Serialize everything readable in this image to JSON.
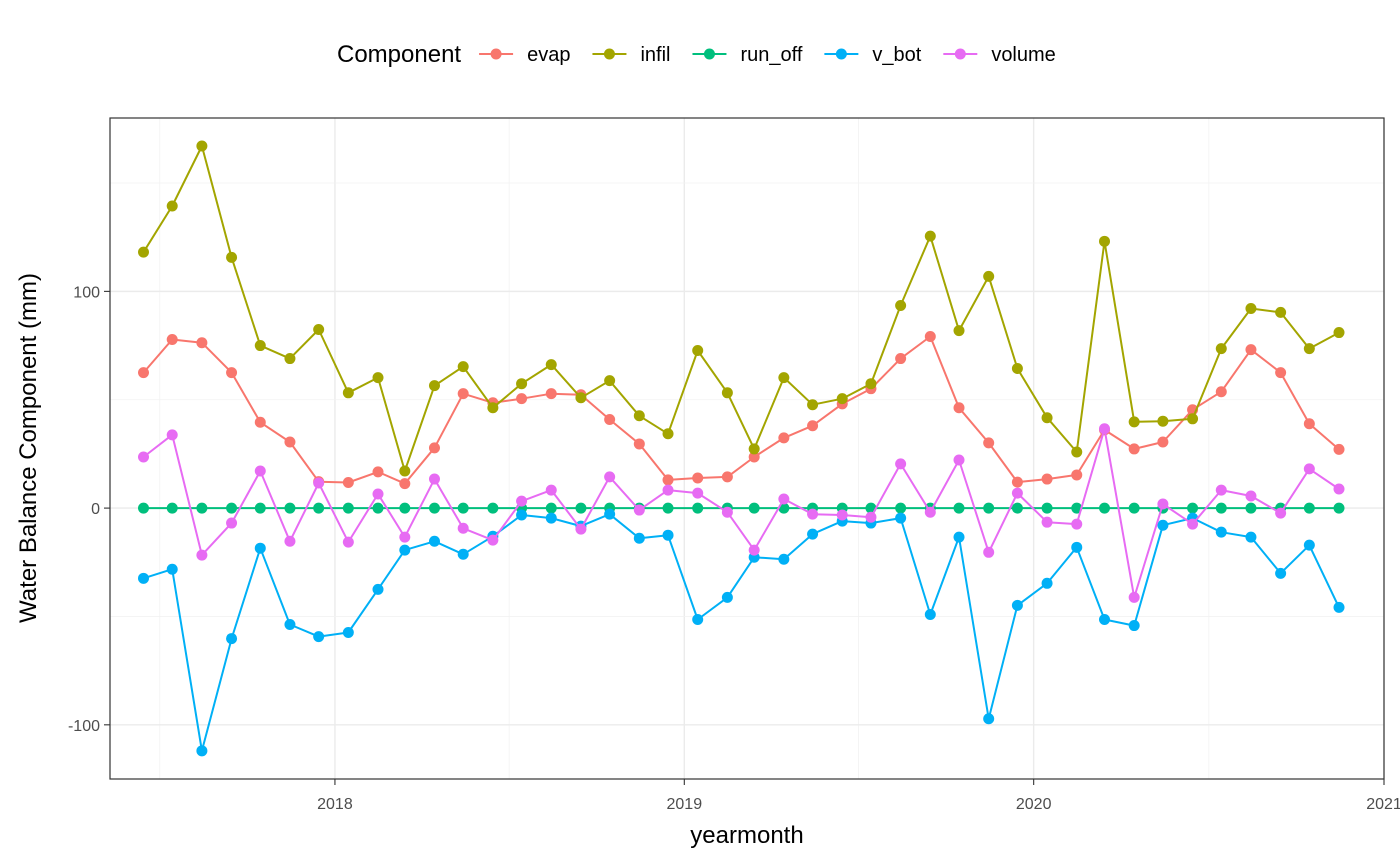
{
  "chart_data": {
    "type": "line",
    "title": "",
    "xlabel": "yearmonth",
    "ylabel": "Water Balance Component (mm)",
    "legend_title": "Component",
    "legend_position": "top",
    "grid": true,
    "xlim": [
      "2017-05-11",
      "2021-01-01"
    ],
    "ylim": [
      -125,
      180
    ],
    "x_ticks": [
      {
        "value": "2018-01-01",
        "label": "2018"
      },
      {
        "value": "2019-01-01",
        "label": "2019"
      },
      {
        "value": "2020-01-01",
        "label": "2020"
      },
      {
        "value": "2021-01-01",
        "label": "2021"
      }
    ],
    "y_ticks": [
      -100,
      0,
      100
    ],
    "x": [
      "2017-06",
      "2017-07",
      "2017-08",
      "2017-09",
      "2017-10",
      "2017-11",
      "2017-12",
      "2018-01",
      "2018-02",
      "2018-03",
      "2018-04",
      "2018-05",
      "2018-06",
      "2018-07",
      "2018-08",
      "2018-09",
      "2018-10",
      "2018-11",
      "2018-12",
      "2019-01",
      "2019-02",
      "2019-03",
      "2019-04",
      "2019-05",
      "2019-06",
      "2019-07",
      "2019-08",
      "2019-09",
      "2019-10",
      "2019-11",
      "2019-12",
      "2020-01",
      "2020-02",
      "2020-03",
      "2020-04",
      "2020-05",
      "2020-06",
      "2020-07",
      "2020-08",
      "2020-09",
      "2020-10",
      "2020-11"
    ],
    "series": [
      {
        "name": "evap",
        "color": "#F8766D",
        "values": [
          62.5,
          77.8,
          76.3,
          62.5,
          39.6,
          30.5,
          12.2,
          11.8,
          16.7,
          11.3,
          27.8,
          52.8,
          48.6,
          50.5,
          52.8,
          52.3,
          40.9,
          29.6,
          13.0,
          13.9,
          14.4,
          23.6,
          32.4,
          38.0,
          48.1,
          55.1,
          69.0,
          79.2,
          46.3,
          30.1,
          12.0,
          13.4,
          15.3,
          36.1,
          27.3,
          30.5,
          45.4,
          53.7,
          73.1,
          62.5,
          38.9,
          27.1
        ]
      },
      {
        "name": "infil",
        "color": "#A3A500",
        "values": [
          118.1,
          139.4,
          167.1,
          115.7,
          75.0,
          69.0,
          82.4,
          53.2,
          60.2,
          17.1,
          56.5,
          65.3,
          46.3,
          57.4,
          66.2,
          50.9,
          58.8,
          42.6,
          34.3,
          72.7,
          53.2,
          27.3,
          60.2,
          47.7,
          50.5,
          57.4,
          93.5,
          125.5,
          81.9,
          106.9,
          64.4,
          41.7,
          25.9,
          123.1,
          39.8,
          40.1,
          41.2,
          73.6,
          92.1,
          90.3,
          73.6,
          81.0
        ]
      },
      {
        "name": "run_off",
        "color": "#00BF7D",
        "values": [
          0,
          0,
          0,
          0,
          0,
          0,
          0,
          0,
          0,
          0,
          0,
          0,
          0,
          0,
          0,
          0,
          0,
          0,
          0,
          0,
          0,
          0,
          0,
          0,
          0,
          0,
          0,
          0,
          0,
          0,
          0,
          0,
          0,
          0,
          0,
          0,
          0,
          0,
          0,
          0,
          0,
          0
        ]
      },
      {
        "name": "v_bot",
        "color": "#00B0F6",
        "values": [
          -32.4,
          -28.2,
          -112.0,
          -60.2,
          -18.5,
          -53.7,
          -59.3,
          -57.4,
          -37.5,
          -19.4,
          -15.3,
          -21.3,
          -13.0,
          -3.2,
          -4.6,
          -8.3,
          -2.8,
          -13.9,
          -12.5,
          -51.4,
          -41.2,
          -22.7,
          -23.6,
          -12.0,
          -6.0,
          -6.9,
          -4.6,
          -49.1,
          -13.4,
          -97.2,
          -44.9,
          -34.7,
          -18.1,
          -51.4,
          -54.2,
          -7.9,
          -4.6,
          -11.1,
          -13.4,
          -30.1,
          -17.1,
          -45.8
        ]
      },
      {
        "name": "volume",
        "color": "#E76BF3",
        "values": [
          23.6,
          33.8,
          -21.7,
          -6.9,
          17.1,
          -15.3,
          11.6,
          -15.7,
          6.5,
          -13.4,
          13.4,
          -9.3,
          -14.8,
          3.2,
          8.3,
          -9.7,
          14.4,
          -0.9,
          8.3,
          6.9,
          -1.9,
          -19.4,
          4.2,
          -2.8,
          -3.2,
          -4.2,
          20.4,
          -1.9,
          22.2,
          -20.4,
          6.9,
          -6.5,
          -7.4,
          36.6,
          -41.2,
          1.9,
          -7.4,
          8.3,
          5.6,
          -2.3,
          18.1,
          8.8
        ]
      }
    ]
  }
}
